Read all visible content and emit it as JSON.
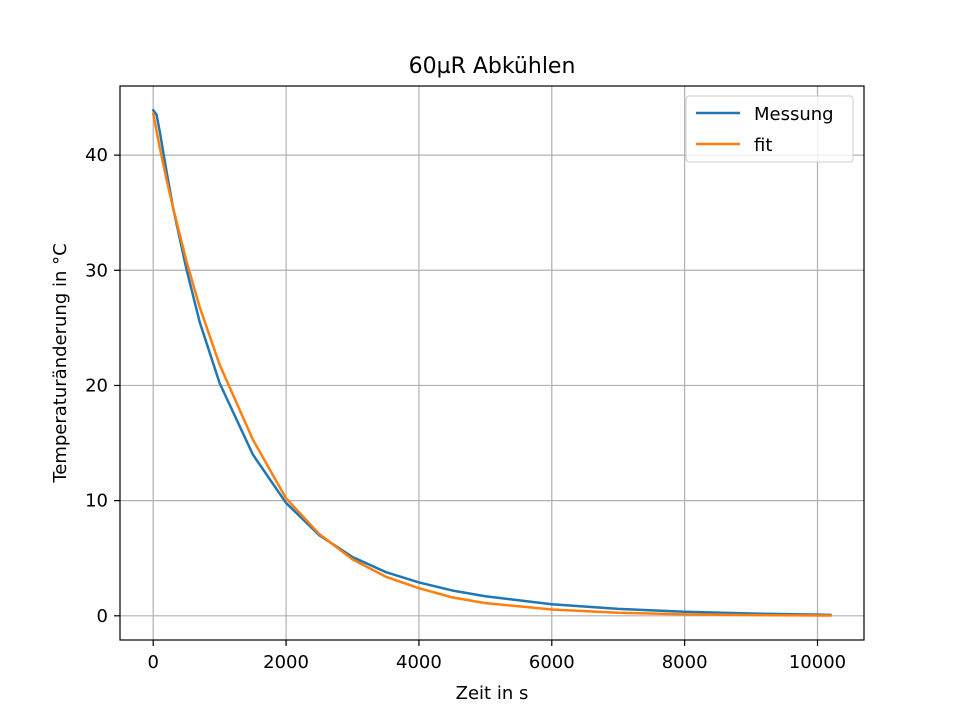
{
  "chart_data": {
    "type": "line",
    "title": "60µR Abkühlen",
    "xlabel": "Zeit in s",
    "ylabel": "Temperaturänderung in °C",
    "xlim": [
      -500,
      10700
    ],
    "ylim": [
      -2.1,
      46.0
    ],
    "xticks": [
      0,
      2000,
      4000,
      6000,
      8000,
      10000
    ],
    "yticks": [
      0,
      10,
      20,
      30,
      40
    ],
    "grid": true,
    "legend_position": "top-right",
    "series": [
      {
        "name": "Messung",
        "color": "#1f77b4",
        "x": [
          0,
          50,
          100,
          200,
          300,
          500,
          700,
          1000,
          1500,
          2000,
          2500,
          3000,
          3500,
          4000,
          4500,
          5000,
          6000,
          7000,
          8000,
          9000,
          10000,
          10200
        ],
        "y": [
          43.9,
          43.5,
          42.0,
          38.6,
          35.4,
          30.1,
          25.5,
          20.2,
          14.0,
          9.8,
          7.0,
          5.1,
          3.8,
          2.9,
          2.2,
          1.7,
          1.0,
          0.6,
          0.35,
          0.2,
          0.1,
          0.08
        ]
      },
      {
        "name": "fit",
        "color": "#ff7f0e",
        "x": [
          0,
          100,
          200,
          300,
          500,
          700,
          1000,
          1500,
          2000,
          2500,
          3000,
          3500,
          4000,
          4500,
          5000,
          6000,
          7000,
          8000,
          9000,
          10000,
          10200
        ],
        "y": [
          43.6,
          40.6,
          37.9,
          35.4,
          30.8,
          26.8,
          21.8,
          15.3,
          10.2,
          7.1,
          4.9,
          3.4,
          2.4,
          1.6,
          1.1,
          0.55,
          0.27,
          0.13,
          0.07,
          0.03,
          0.03
        ]
      }
    ]
  }
}
